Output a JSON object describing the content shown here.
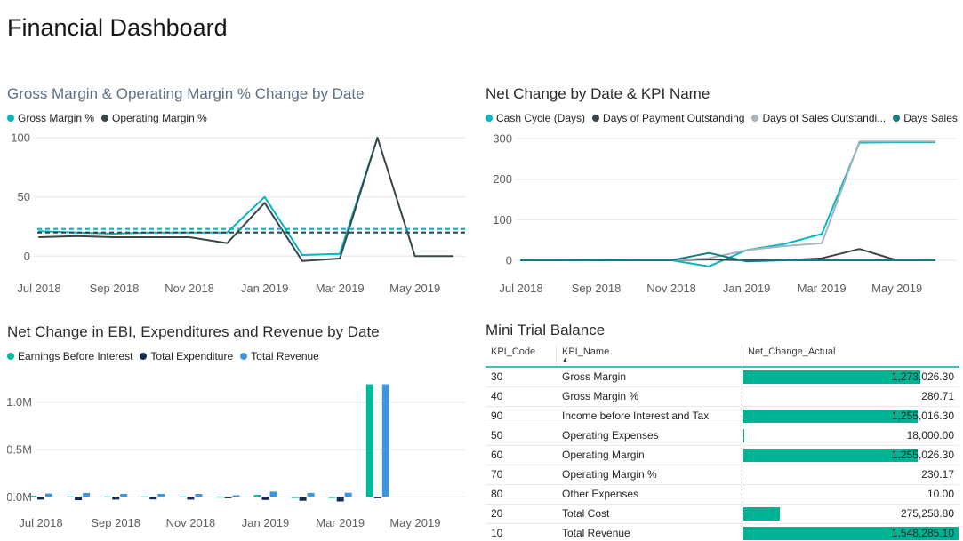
{
  "page": {
    "title": "Financial Dashboard"
  },
  "colors": {
    "accent_teal": "#00b7c3",
    "dark_slate": "#374649",
    "light_gray_series": "#aab3ba",
    "dark_teal": "#0f7b83",
    "bar_green": "#00b89c",
    "bar_navy": "#16294f",
    "bar_blue": "#3e95db",
    "table_bar": "#00b294",
    "table_header_underline": "#3fbdb8",
    "gridline": "#e6e6e6",
    "axis_text": "#605e5c"
  },
  "chart_data": [
    {
      "id": "gross-operating-margin-line",
      "type": "line",
      "title": "Gross Margin & Operating Margin % Change by Date",
      "x": [
        "Jul 2018",
        "Aug 2018",
        "Sep 2018",
        "Oct 2018",
        "Nov 2018",
        "Dec 2018",
        "Jan 2019",
        "Feb 2019",
        "Mar 2019",
        "Apr 2019",
        "May 2019",
        "Jun 2019"
      ],
      "x_tick_labels": [
        "Jul 2018",
        "Sep 2018",
        "Nov 2018",
        "Jan 2019",
        "Mar 2019",
        "May 2019"
      ],
      "ylim": [
        -11,
        100
      ],
      "yticks": [
        0,
        50,
        100
      ],
      "grid": true,
      "legend_position": "top",
      "series": [
        {
          "name": "Gross Margin %",
          "color": "#00b7c3",
          "values": [
            21,
            20,
            19,
            20,
            20,
            20,
            50,
            1,
            2,
            100,
            null,
            null
          ],
          "average_line": 23
        },
        {
          "name": "Operating Margin %",
          "color": "#374649",
          "values": [
            16,
            17,
            16,
            16,
            16,
            11,
            45,
            -4,
            -2,
            100,
            0,
            0
          ],
          "average_line": 20
        }
      ]
    },
    {
      "id": "net-change-kpi-line",
      "type": "line",
      "title": "Net Change by Date & KPI Name",
      "x": [
        "Jul 2018",
        "Aug 2018",
        "Sep 2018",
        "Oct 2018",
        "Nov 2018",
        "Dec 2018",
        "Jan 2019",
        "Feb 2019",
        "Mar 2019",
        "Apr 2019",
        "May 2019",
        "Jun 2019"
      ],
      "x_tick_labels": [
        "Jul 2018",
        "Sep 2018",
        "Nov 2018",
        "Jan 2019",
        "Mar 2019",
        "May 2019"
      ],
      "ylim": [
        -22,
        300
      ],
      "yticks": [
        0,
        100,
        200,
        300
      ],
      "grid": true,
      "legend_position": "top",
      "series": [
        {
          "name": "Cash Cycle (Days)",
          "color": "#00b7c3",
          "values": [
            0,
            0,
            1,
            0,
            0,
            -15,
            25,
            40,
            65,
            290,
            291,
            291
          ]
        },
        {
          "name": "Days of Payment Outstanding",
          "color": "#374649",
          "values": [
            0,
            0,
            0,
            0,
            0,
            2,
            0,
            0,
            5,
            28,
            0,
            0
          ]
        },
        {
          "name": "Days of Sales Outstandi...",
          "color": "#aab3ba",
          "values": [
            0,
            0,
            0,
            0,
            0,
            5,
            25,
            35,
            42,
            293,
            293,
            293
          ]
        },
        {
          "name": "Days Sales of Inve...",
          "color": "#0f7b83",
          "values": [
            0,
            0,
            0,
            0,
            0,
            18,
            -3,
            0,
            0,
            0,
            0,
            0
          ]
        }
      ]
    },
    {
      "id": "ebi-expenditure-revenue-bar",
      "type": "bar",
      "title": "Net Change in EBI, Expenditures and Revenue by Date",
      "x": [
        "Jul 2018",
        "Aug 2018",
        "Sep 2018",
        "Oct 2018",
        "Nov 2018",
        "Dec 2018",
        "Jan 2019",
        "Feb 2019",
        "Mar 2019",
        "Apr 2019",
        "May 2019",
        "Jun 2019"
      ],
      "x_tick_labels": [
        "Jul 2018",
        "Sep 2018",
        "Nov 2018",
        "Jan 2019",
        "Mar 2019",
        "May 2019"
      ],
      "ylim": [
        -0.09,
        1.26
      ],
      "yticks": [
        0,
        0.5,
        1.0
      ],
      "ytick_labels": [
        "0.0M",
        "0.5M",
        "1.0M"
      ],
      "grid": true,
      "legend_position": "top",
      "series": [
        {
          "name": "Earnings Before Interest",
          "color": "#00b89c",
          "values": [
            0.012,
            0.006,
            0.006,
            0.006,
            0.006,
            0.004,
            0.022,
            -0.008,
            -0.008,
            1.19,
            null,
            null
          ]
        },
        {
          "name": "Total Expenditure",
          "color": "#16294f",
          "values": [
            -0.028,
            -0.034,
            -0.028,
            -0.026,
            -0.028,
            -0.014,
            -0.032,
            -0.04,
            -0.048,
            -0.014,
            null,
            null
          ]
        },
        {
          "name": "Total Revenue",
          "color": "#3e95db",
          "values": [
            0.036,
            0.042,
            0.032,
            0.032,
            0.032,
            0.018,
            0.056,
            0.042,
            0.044,
            1.19,
            null,
            null
          ]
        }
      ]
    },
    {
      "id": "mini-trial-balance-table",
      "type": "table",
      "title": "Mini Trial Balance",
      "columns": [
        "KPI_Code",
        "KPI_Name",
        "Net_Change_Actual"
      ],
      "sort": {
        "column": "KPI_Name",
        "direction": "asc",
        "arrow": "▲"
      },
      "bar_color": "#00b294",
      "rows": [
        {
          "code": "30",
          "name": "Gross Margin",
          "value": "1,273,026.30"
        },
        {
          "code": "40",
          "name": "Gross Margin %",
          "value": "280.71"
        },
        {
          "code": "90",
          "name": "Income before Interest and Tax",
          "value": "1,255,016.30"
        },
        {
          "code": "50",
          "name": "Operating Expenses",
          "value": "18,000.00"
        },
        {
          "code": "60",
          "name": "Operating Margin",
          "value": "1,255,026.30"
        },
        {
          "code": "70",
          "name": "Operating Margin %",
          "value": "230.17"
        },
        {
          "code": "80",
          "name": "Other Expenses",
          "value": "10.00"
        },
        {
          "code": "20",
          "name": "Total Cost",
          "value": "275,258.80"
        },
        {
          "code": "10",
          "name": "Total Revenue",
          "value": "1,548,285.10"
        }
      ]
    }
  ]
}
